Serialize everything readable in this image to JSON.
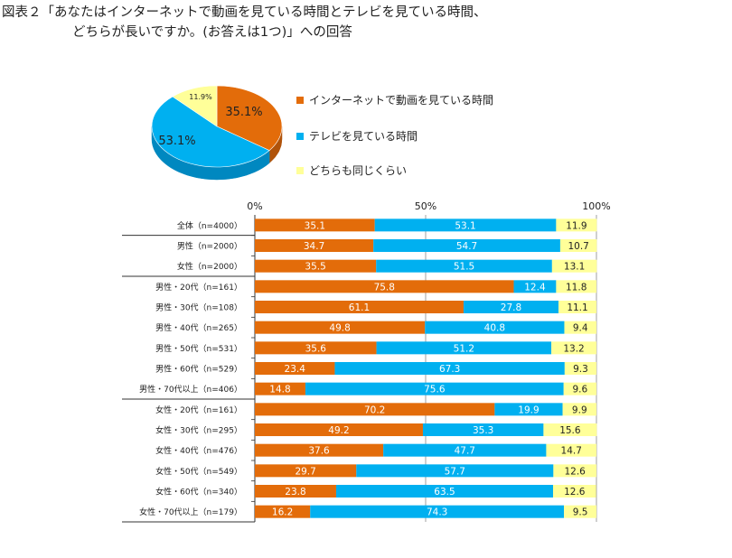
{
  "title": {
    "line1": "図表２「あなたはインターネットで動画を見ている時間とテレビを見ている時間、",
    "line2": "どちらが長いですか。(お答えは1つ)」への回答"
  },
  "colors": {
    "internet": "#E36C0A",
    "tv": "#00B0F0",
    "same": "#FFFF99",
    "tv_side": "#0088C0",
    "internet_side": "#B0530A",
    "same_side": "#CCCC77"
  },
  "chart_data": [
    {
      "type": "pie",
      "title": "",
      "slices": [
        {
          "name": "インターネットで動画を見ている時間",
          "value": 35.1,
          "label": "35.1%"
        },
        {
          "name": "テレビを見ている時間",
          "value": 53.1,
          "label": "53.1%"
        },
        {
          "name": "どちらも同じくらい",
          "value": 11.9,
          "label": "11.9%"
        }
      ]
    },
    {
      "type": "bar",
      "orientation": "horizontal",
      "stacked": true,
      "xlim": [
        0,
        100
      ],
      "ticks": [
        "0%",
        "50%",
        "100%"
      ],
      "categories": [
        "全体（n=4000）",
        "男性（n=2000）",
        "女性（n=2000）",
        "男性・20代（n=161）",
        "男性・30代（n=108）",
        "男性・40代（n=265）",
        "男性・50代（n=531）",
        "男性・60代（n=529）",
        "男性・70代以上（n=406）",
        "女性・20代（n=161）",
        "女性・30代（n=295）",
        "女性・40代（n=476）",
        "女性・50代（n=549）",
        "女性・60代（n=340）",
        "女性・70代以上（n=179）"
      ],
      "groups_end_after": [
        0,
        2,
        8
      ],
      "series": [
        {
          "name": "インターネットで動画を見ている時間",
          "values": [
            35.1,
            34.7,
            35.5,
            75.8,
            61.1,
            49.8,
            35.6,
            23.4,
            14.8,
            70.2,
            49.2,
            37.6,
            29.7,
            23.8,
            16.2
          ]
        },
        {
          "name": "テレビを見ている時間",
          "values": [
            53.1,
            54.7,
            51.5,
            12.4,
            27.8,
            40.8,
            51.2,
            67.3,
            75.6,
            19.9,
            35.3,
            47.7,
            57.7,
            63.5,
            74.3
          ]
        },
        {
          "name": "どちらも同じくらい",
          "values": [
            11.9,
            10.7,
            13.1,
            11.8,
            11.1,
            9.4,
            13.2,
            9.3,
            9.6,
            9.9,
            15.6,
            14.7,
            12.6,
            12.6,
            9.5
          ]
        }
      ]
    }
  ],
  "legend": [
    {
      "label": "インターネットで動画を見ている時間"
    },
    {
      "label": "テレビを見ている時間"
    },
    {
      "label": "どちらも同じくらい"
    }
  ]
}
